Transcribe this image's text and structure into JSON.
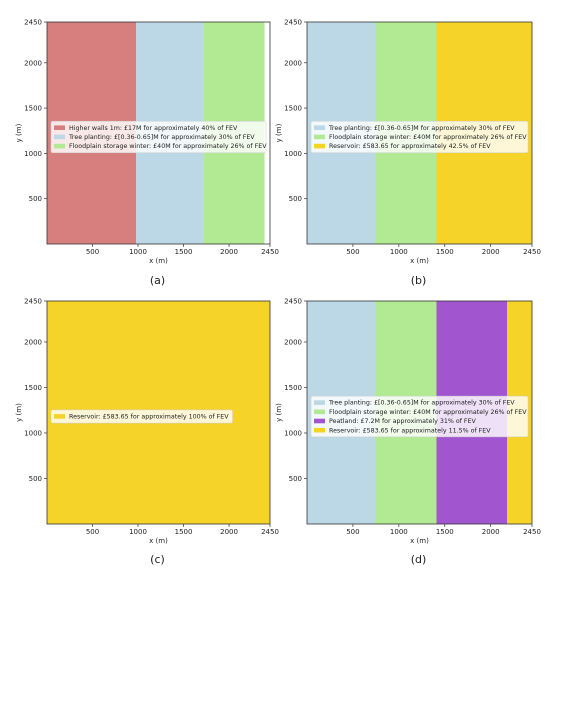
{
  "chart_data": [
    {
      "type": "area",
      "label": "(a)",
      "xlabel": "x (m)",
      "ylabel": "y (m)",
      "xlim": [
        0,
        2450
      ],
      "ylim": [
        0,
        2450
      ],
      "xticks": [
        500,
        1000,
        1500,
        2000,
        2450
      ],
      "yticks": [
        500,
        1000,
        1500,
        2000,
        2450
      ],
      "legend_position": "center-left",
      "series": [
        {
          "name": "Higher walls 1m: £17M for approximately 40% of FEV",
          "x_start": 0,
          "x_end": 980,
          "color": "#d77f7f"
        },
        {
          "name": "Tree planting: £[0.36-0.65]M for approximately 30% of FEV",
          "x_start": 980,
          "x_end": 1720,
          "color": "#bcd8e6"
        },
        {
          "name": "Floodplain storage winter: £40M for approximately 26% of FEV",
          "x_start": 1720,
          "x_end": 2390,
          "color": "#b2ea94"
        }
      ]
    },
    {
      "type": "area",
      "label": "(b)",
      "xlabel": "x (m)",
      "ylabel": "y (m)",
      "xlim": [
        0,
        2450
      ],
      "ylim": [
        0,
        2450
      ],
      "xticks": [
        500,
        1000,
        1500,
        2000,
        2450
      ],
      "yticks": [
        500,
        1000,
        1500,
        2000,
        2450
      ],
      "legend_position": "center-left",
      "series": [
        {
          "name": "Tree planting: £[0.36-0.65]M for approximately 30% of FEV",
          "x_start": 0,
          "x_end": 740,
          "color": "#bcd8e6"
        },
        {
          "name": "Floodplain storage winter: £40M for approximately 26% of FEV",
          "x_start": 740,
          "x_end": 1410,
          "color": "#b2ea94"
        },
        {
          "name": "Reservoir: £583.65 for approximately 42.5% of FEV",
          "x_start": 1410,
          "x_end": 2450,
          "color": "#f5d328"
        }
      ]
    },
    {
      "type": "area",
      "label": "(c)",
      "xlabel": "x (m)",
      "ylabel": "y (m)",
      "xlim": [
        0,
        2450
      ],
      "ylim": [
        0,
        2450
      ],
      "xticks": [
        500,
        1000,
        1500,
        2000,
        2450
      ],
      "yticks": [
        500,
        1000,
        1500,
        2000,
        2450
      ],
      "legend_position": "center-left",
      "series": [
        {
          "name": "Reservoir: £583.65 for approximately 100% of FEV",
          "x_start": 0,
          "x_end": 2450,
          "color": "#f5d328"
        }
      ]
    },
    {
      "type": "area",
      "label": "(d)",
      "xlabel": "x (m)",
      "ylabel": "y (m)",
      "xlim": [
        0,
        2450
      ],
      "ylim": [
        0,
        2450
      ],
      "xticks": [
        500,
        1000,
        1500,
        2000,
        2450
      ],
      "yticks": [
        500,
        1000,
        1500,
        2000,
        2450
      ],
      "legend_position": "center-left",
      "series": [
        {
          "name": "Tree planting: £[0.36-0.65]M for approximately 30% of FEV",
          "x_start": 0,
          "x_end": 740,
          "color": "#bcd8e6"
        },
        {
          "name": "Floodplain storage winter: £40M for approximately 26% of FEV",
          "x_start": 740,
          "x_end": 1410,
          "color": "#b2ea94"
        },
        {
          "name": "Peatland: £7.2M for approximately 31% of FEV",
          "x_start": 1410,
          "x_end": 2180,
          "color": "#a155cf"
        },
        {
          "name": "Reservoir: £583.65 for approximately 11.5% of FEV",
          "x_start": 2180,
          "x_end": 2450,
          "color": "#f5d328"
        }
      ]
    }
  ]
}
